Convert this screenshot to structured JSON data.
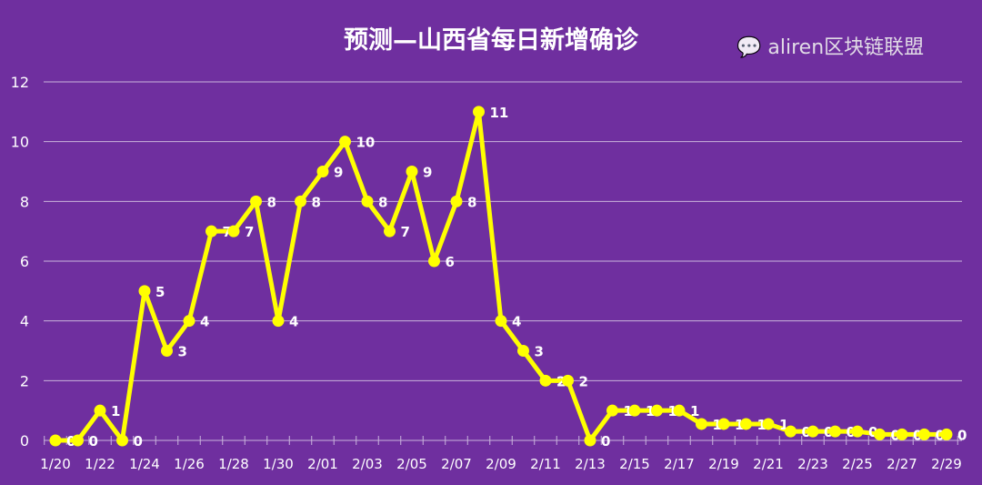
{
  "chart_data": {
    "type": "line",
    "title": "预测—山西省每日新增确诊",
    "xlabel": "",
    "ylabel": "",
    "ylim": [
      0,
      12
    ],
    "yticks": [
      0,
      2,
      4,
      6,
      8,
      10,
      12
    ],
    "grid": true,
    "x": [
      "1/20",
      "1/21",
      "1/22",
      "1/23",
      "1/24",
      "1/25",
      "1/26",
      "1/27",
      "1/28",
      "1/29",
      "1/30",
      "1/31",
      "2/01",
      "2/02",
      "2/03",
      "2/04",
      "2/05",
      "2/06",
      "2/07",
      "2/08",
      "2/09",
      "2/10",
      "2/11",
      "2/12",
      "2/13",
      "2/14",
      "2/15",
      "2/16",
      "2/17",
      "2/18",
      "2/19",
      "2/20",
      "2/21",
      "2/22",
      "2/23",
      "2/24",
      "2/25",
      "2/26",
      "2/27",
      "2/28",
      "2/29"
    ],
    "xtick_labels": [
      "1/20",
      "1/22",
      "1/24",
      "1/26",
      "1/28",
      "1/30",
      "2/01",
      "2/03",
      "2/05",
      "2/07",
      "2/09",
      "2/11",
      "2/13",
      "2/15",
      "2/17",
      "2/19",
      "2/21",
      "2/23",
      "2/25",
      "2/27",
      "2/29"
    ],
    "values": [
      0,
      0,
      1,
      0,
      5,
      3,
      4,
      7,
      7,
      8,
      4,
      8,
      9,
      10,
      8,
      7,
      9,
      6,
      8,
      11,
      4,
      3,
      2,
      2,
      0,
      1,
      1,
      1,
      1,
      0.55,
      0.55,
      0.55,
      0.55,
      0.3,
      0.3,
      0.3,
      0.3,
      0.2,
      0.2,
      0.2,
      0.2
    ],
    "data_labels": [
      "0",
      "0",
      "1",
      "0",
      "5",
      "3",
      "4",
      "7",
      "7",
      "8",
      "4",
      "8",
      "9",
      "10",
      "8",
      "7",
      "9",
      "6",
      "8",
      "11",
      "4",
      "3",
      "2",
      "2",
      "0",
      "1",
      "1",
      "1",
      "1",
      "1",
      "1",
      "1",
      "1",
      "0",
      "0",
      "0",
      "0",
      "0",
      "0",
      "0",
      "0"
    ],
    "line_color": "#ffff00",
    "background": "#6f2f9f"
  },
  "watermark": "aliren区块链联盟"
}
